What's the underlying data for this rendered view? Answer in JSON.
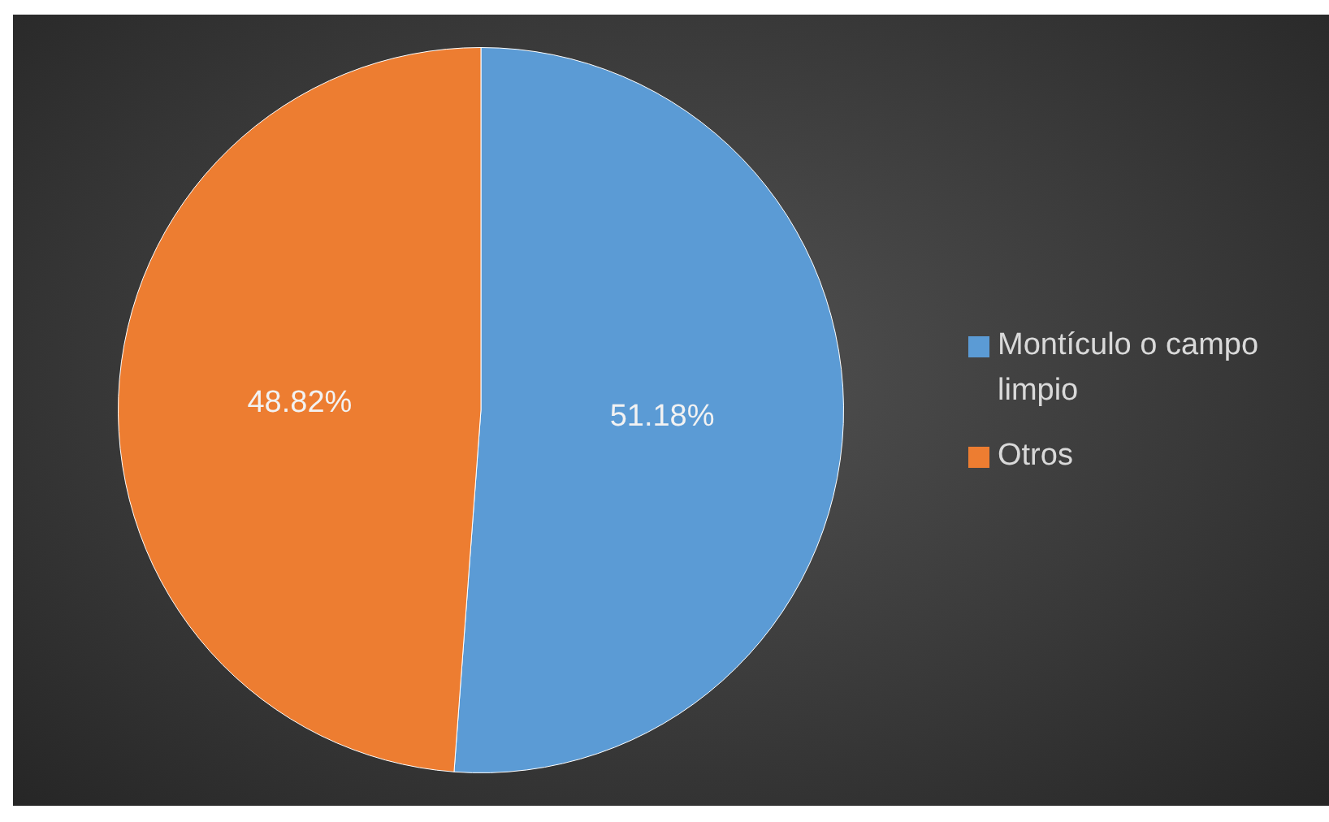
{
  "chart_data": {
    "type": "pie",
    "categories": [
      "Montículo o campo limpio",
      "Otros"
    ],
    "values": [
      51.18,
      48.82
    ],
    "colors": [
      "#5b9bd5",
      "#ed7d31"
    ],
    "value_labels": [
      "51.18%",
      "48.82%"
    ],
    "legend": "right"
  }
}
